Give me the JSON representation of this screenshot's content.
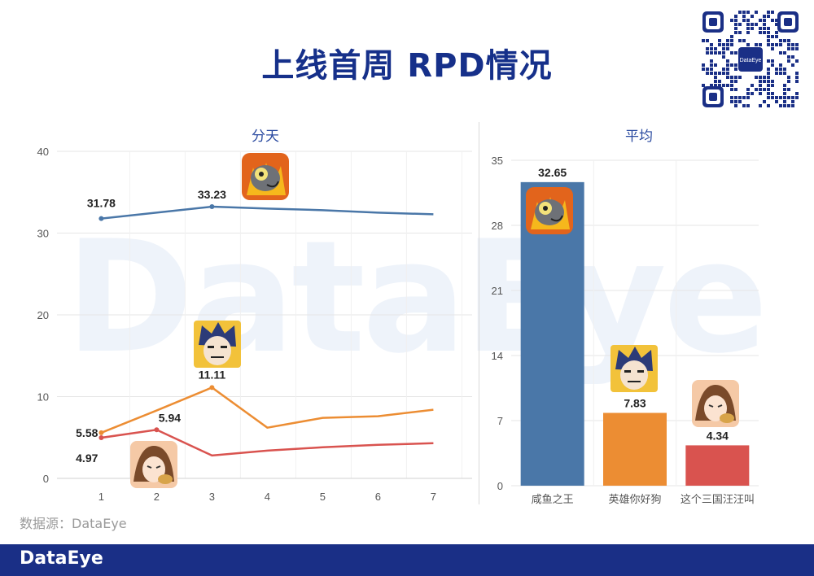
{
  "page": {
    "title": "上线首周 RPD情况",
    "source": "数据源：DataEye",
    "footer_logo": "DataEye",
    "watermark": "DataEye",
    "qr_label": "DataEye"
  },
  "colors": {
    "title": "#16308a",
    "footer": "#1a2f86",
    "blue": "#4a77a8",
    "orange": "#ec8d33",
    "red": "#d9534f"
  },
  "chart_data": [
    {
      "type": "line",
      "title": "分天",
      "x": [
        1,
        2,
        3,
        4,
        5,
        6,
        7
      ],
      "xlim": [
        0.2,
        7.7
      ],
      "ylim": [
        0,
        40
      ],
      "yticks": [
        0,
        10,
        20,
        30,
        40
      ],
      "grid": true,
      "series": [
        {
          "values": [
            31.78,
            null,
            33.23,
            33.0,
            32.8,
            32.5,
            32.3
          ],
          "color": "#4a77a8",
          "icon": "salted-fish-king-icon",
          "labels": [
            {
              "x": 1,
              "text": "31.78"
            },
            {
              "x": 3,
              "text": "33.23"
            }
          ]
        },
        {
          "values": [
            5.58,
            8.3,
            11.11,
            6.2,
            7.4,
            7.6,
            8.4
          ],
          "color": "#ec8d33",
          "icon": "hero-dog-icon",
          "labels": [
            {
              "x": 1,
              "text": "5.58"
            },
            {
              "x": 3,
              "text": "11.11"
            }
          ]
        },
        {
          "values": [
            4.97,
            5.94,
            2.8,
            3.4,
            3.8,
            4.1,
            4.3
          ],
          "color": "#d9534f",
          "icon": "three-kingdoms-icon",
          "labels": [
            {
              "x": 1,
              "text": "4.97"
            },
            {
              "x": 2,
              "text": "5.94"
            }
          ]
        }
      ]
    },
    {
      "type": "bar",
      "title": "平均",
      "categories": [
        "咸鱼之王",
        "英雄你好狗",
        "这个三国汪汪叫"
      ],
      "values": [
        32.65,
        7.83,
        4.34
      ],
      "colors": [
        "#4a77a8",
        "#ec8d33",
        "#d9534f"
      ],
      "icons": [
        "salted-fish-king-icon",
        "hero-dog-icon",
        "three-kingdoms-icon"
      ],
      "value_labels": [
        "32.65",
        "7.83",
        "4.34"
      ],
      "ylim": [
        0,
        35
      ],
      "yticks": [
        0,
        7,
        14,
        21,
        28,
        35
      ],
      "grid": true
    }
  ]
}
